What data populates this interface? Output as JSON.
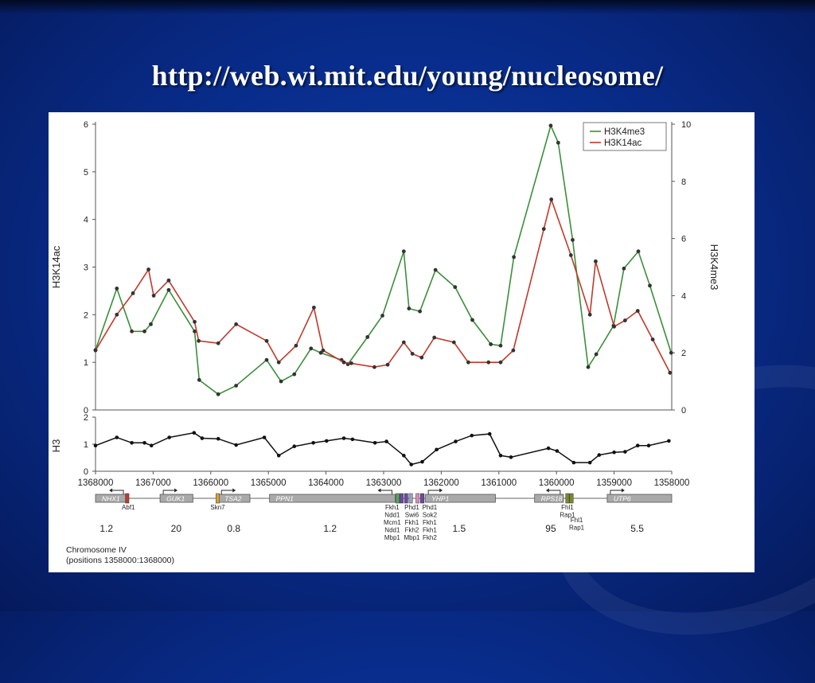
{
  "slide": {
    "title": "http://web.wi.mit.edu/young/nucleosome/"
  },
  "chart_data": {
    "type": "line",
    "x_axis": {
      "ticks": [
        1368000,
        1367000,
        1366000,
        1365000,
        1364000,
        1363000,
        1362000,
        1361000,
        1360000,
        1359000,
        1358000
      ],
      "range": [
        1368000,
        1358000
      ]
    },
    "top_panel": {
      "ylabel_left": "H3K14ac",
      "ylabel_right": "H3K4me3",
      "ylim_left": [
        0,
        6
      ],
      "ylim_right": [
        0,
        10
      ],
      "left_ticks": [
        0,
        1,
        2,
        3,
        4,
        5,
        6
      ],
      "right_ticks": [
        0,
        2,
        4,
        6,
        8,
        10
      ],
      "legend_position": "top-right",
      "series": [
        {
          "name": "H3K4me3",
          "axis": "right",
          "color": "#3a8f3a",
          "points": [
            [
              1368000,
              2.1
            ],
            [
              1367630,
              4.25
            ],
            [
              1367370,
              2.75
            ],
            [
              1367150,
              2.75
            ],
            [
              1367040,
              3.0
            ],
            [
              1366730,
              4.2
            ],
            [
              1366280,
              2.75
            ],
            [
              1366200,
              1.05
            ],
            [
              1365870,
              0.55
            ],
            [
              1365560,
              0.85
            ],
            [
              1365030,
              1.75
            ],
            [
              1364780,
              1.0
            ],
            [
              1364550,
              1.25
            ],
            [
              1364260,
              2.15
            ],
            [
              1364090,
              2.0
            ],
            [
              1363730,
              1.75
            ],
            [
              1363620,
              1.6
            ],
            [
              1363280,
              2.55
            ],
            [
              1363020,
              3.3
            ],
            [
              1362650,
              5.55
            ],
            [
              1362560,
              3.55
            ],
            [
              1362370,
              3.45
            ],
            [
              1362100,
              4.9
            ],
            [
              1361760,
              4.3
            ],
            [
              1361460,
              3.15
            ],
            [
              1361140,
              2.3
            ],
            [
              1360970,
              2.25
            ],
            [
              1360740,
              5.35
            ],
            [
              1360100,
              9.95
            ],
            [
              1359970,
              9.35
            ],
            [
              1359720,
              5.95
            ],
            [
              1359450,
              1.5
            ],
            [
              1359310,
              1.95
            ],
            [
              1359010,
              2.95
            ],
            [
              1358830,
              4.95
            ],
            [
              1358580,
              5.55
            ],
            [
              1358380,
              4.35
            ],
            [
              1358010,
              2.0
            ]
          ]
        },
        {
          "name": "H3K14ac",
          "axis": "left",
          "color": "#c0392b",
          "points": [
            [
              1368000,
              1.25
            ],
            [
              1367630,
              2.0
            ],
            [
              1367350,
              2.45
            ],
            [
              1367080,
              2.95
            ],
            [
              1366990,
              2.4
            ],
            [
              1366730,
              2.72
            ],
            [
              1366280,
              1.85
            ],
            [
              1366210,
              1.45
            ],
            [
              1365870,
              1.4
            ],
            [
              1365560,
              1.8
            ],
            [
              1365030,
              1.45
            ],
            [
              1364820,
              1.0
            ],
            [
              1364520,
              1.35
            ],
            [
              1364210,
              2.15
            ],
            [
              1364050,
              1.25
            ],
            [
              1363690,
              1.0
            ],
            [
              1363560,
              0.98
            ],
            [
              1363160,
              0.9
            ],
            [
              1362930,
              0.95
            ],
            [
              1362650,
              1.42
            ],
            [
              1362500,
              1.18
            ],
            [
              1362340,
              1.1
            ],
            [
              1362120,
              1.52
            ],
            [
              1361780,
              1.42
            ],
            [
              1361530,
              1.0
            ],
            [
              1361180,
              1.0
            ],
            [
              1360970,
              1.0
            ],
            [
              1360750,
              1.25
            ],
            [
              1360220,
              3.8
            ],
            [
              1360090,
              4.42
            ],
            [
              1359750,
              3.25
            ],
            [
              1359420,
              2.0
            ],
            [
              1359320,
              3.12
            ],
            [
              1359000,
              1.75
            ],
            [
              1358810,
              1.88
            ],
            [
              1358590,
              2.08
            ],
            [
              1358330,
              1.48
            ],
            [
              1358030,
              0.78
            ]
          ]
        }
      ]
    },
    "bottom_panel": {
      "ylabel": "H3",
      "ylim": [
        0,
        2
      ],
      "ticks": [
        0,
        1,
        2
      ],
      "series": [
        {
          "name": "H3",
          "color": "#111111",
          "points": [
            [
              1368000,
              0.95
            ],
            [
              1367630,
              1.25
            ],
            [
              1367370,
              1.05
            ],
            [
              1367150,
              1.05
            ],
            [
              1367030,
              0.95
            ],
            [
              1366720,
              1.25
            ],
            [
              1366290,
              1.42
            ],
            [
              1366150,
              1.22
            ],
            [
              1365870,
              1.2
            ],
            [
              1365560,
              0.97
            ],
            [
              1365070,
              1.25
            ],
            [
              1364820,
              0.58
            ],
            [
              1364550,
              0.92
            ],
            [
              1364220,
              1.05
            ],
            [
              1363990,
              1.12
            ],
            [
              1363690,
              1.22
            ],
            [
              1363540,
              1.18
            ],
            [
              1363150,
              1.05
            ],
            [
              1362950,
              1.1
            ],
            [
              1362650,
              0.58
            ],
            [
              1362520,
              0.25
            ],
            [
              1362330,
              0.35
            ],
            [
              1362080,
              0.8
            ],
            [
              1361750,
              1.1
            ],
            [
              1361470,
              1.32
            ],
            [
              1361160,
              1.38
            ],
            [
              1360970,
              0.58
            ],
            [
              1360790,
              0.52
            ],
            [
              1360140,
              0.85
            ],
            [
              1359990,
              0.75
            ],
            [
              1359700,
              0.32
            ],
            [
              1359420,
              0.32
            ],
            [
              1359260,
              0.6
            ],
            [
              1359000,
              0.7
            ],
            [
              1358810,
              0.72
            ],
            [
              1358590,
              0.95
            ],
            [
              1358400,
              0.95
            ],
            [
              1358050,
              1.12
            ]
          ]
        }
      ]
    },
    "genes": [
      {
        "name": "NHX1",
        "start": 1368000,
        "end": 1367460,
        "arrow": "left"
      },
      {
        "name": "GUK1",
        "start": 1366880,
        "end": 1366310,
        "arrow": "right"
      },
      {
        "name": "TSA2",
        "start": 1365870,
        "end": 1365320,
        "arrow": "right"
      },
      {
        "name": "PPN1",
        "start": 1364980,
        "end": 1362800,
        "arrow": "left"
      },
      {
        "name": "YHP1",
        "start": 1362280,
        "end": 1361060,
        "arrow": "right"
      },
      {
        "name": "RPS18",
        "start": 1360380,
        "end": 1359880,
        "arrow": "left"
      },
      {
        "name": "UTP6",
        "start": 1359120,
        "end": 1358000,
        "arrow": "right"
      }
    ],
    "motif_boxes": [
      {
        "pos": 1367450,
        "color": "#c0392b"
      },
      {
        "pos": 1365880,
        "color": "#d9a13a"
      },
      {
        "pos": 1362760,
        "color": "#5aa35a"
      },
      {
        "pos": 1362690,
        "color": "#6b4aa3"
      },
      {
        "pos": 1362610,
        "color": "#6b4aa3"
      },
      {
        "pos": 1362530,
        "color": "#9aa0c0"
      },
      {
        "pos": 1362410,
        "color": "#d98fb5"
      },
      {
        "pos": 1362330,
        "color": "#6b4aa3"
      },
      {
        "pos": 1359810,
        "color": "#7a8a2a"
      },
      {
        "pos": 1359740,
        "color": "#7a8a2a"
      }
    ],
    "motif_labels": [
      {
        "pos": 1367430,
        "lines": [
          "Abf1"
        ]
      },
      {
        "pos": 1365880,
        "lines": [
          "Skn7"
        ]
      },
      {
        "pos": 1362850,
        "lines": [
          "Fkh1",
          "Ndd1",
          "Mcm1",
          "Ndd1",
          "Mbp1"
        ]
      },
      {
        "pos": 1362510,
        "lines": [
          "Phd1",
          "Swi6",
          "Fkh1",
          "Fkh2",
          "Mbp1"
        ]
      },
      {
        "pos": 1362200,
        "lines": [
          "Phd1",
          "Sok2",
          "Fkh1",
          "Fkh1",
          "Fkh2"
        ]
      },
      {
        "pos": 1359810,
        "lines": [
          "Fhl1",
          "Rap1"
        ]
      },
      {
        "pos": 1359650,
        "lines": [
          "Fhl1",
          "Rap1"
        ],
        "offset": 1
      }
    ],
    "ratios": [
      {
        "pos": 1367810,
        "label": "1.2"
      },
      {
        "pos": 1366600,
        "label": "20"
      },
      {
        "pos": 1365600,
        "label": "0.8"
      },
      {
        "pos": 1363930,
        "label": "1.2"
      },
      {
        "pos": 1361690,
        "label": "1.5"
      },
      {
        "pos": 1360100,
        "label": "95"
      },
      {
        "pos": 1358600,
        "label": "5.5"
      }
    ],
    "caption_line1": "Chromosome IV",
    "caption_line2": "(positions 1358000:1368000)"
  }
}
